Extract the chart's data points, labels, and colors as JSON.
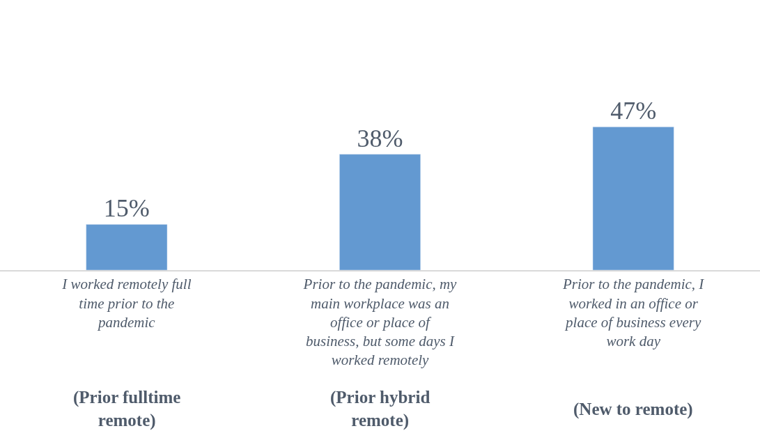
{
  "chart_data": {
    "type": "bar",
    "categories": [
      "I worked remotely full time prior to the pandemic",
      "Prior to the pandemic, my main workplace was an office or place of business, but some days I worked remotely",
      "Prior to the pandemic, I worked in an office or place of business every work day"
    ],
    "values": [
      15,
      38,
      47
    ],
    "value_labels": [
      "15%",
      "38%",
      "47%"
    ],
    "color": "#6399d1",
    "annotations": [
      "(Prior fulltime remote)",
      "(Prior hybrid remote)",
      "(New to remote)"
    ],
    "legend": false
  }
}
